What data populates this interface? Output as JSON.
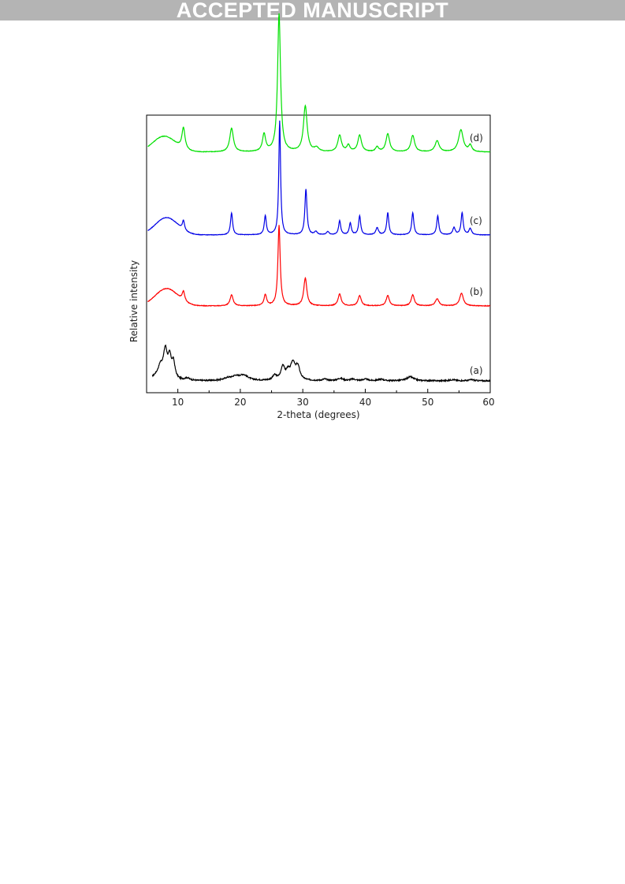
{
  "banner": {
    "text": "ACCEPTED MANUSCRIPT"
  },
  "chart_data": {
    "type": "line",
    "xlabel": "2-theta (degrees)",
    "ylabel": "Relative intensity",
    "xlim": [
      5,
      60
    ],
    "xticks": [
      10,
      20,
      30,
      40,
      50,
      60
    ],
    "y_ticks_shown": false,
    "grid": false,
    "colors": {
      "a": "#000000",
      "b": "#ff0000",
      "c": "#0000e6",
      "d": "#00e000"
    },
    "series": [
      {
        "name": "(a)",
        "offset": 0.0,
        "baseline": 0.05,
        "broad": [
          [
            7.5,
            0.1,
            1.2
          ]
        ],
        "peaks": [
          [
            7.2,
            0.09,
            0.35
          ],
          [
            8.0,
            0.3,
            0.35
          ],
          [
            8.7,
            0.22,
            0.3
          ],
          [
            9.3,
            0.19,
            0.3
          ],
          [
            11.5,
            0.03,
            0.5
          ],
          [
            18.0,
            0.03,
            0.8
          ],
          [
            19.2,
            0.04,
            0.6
          ],
          [
            20.5,
            0.07,
            0.9
          ],
          [
            25.5,
            0.06,
            0.4
          ],
          [
            26.8,
            0.17,
            0.35
          ],
          [
            27.6,
            0.09,
            0.35
          ],
          [
            28.4,
            0.21,
            0.45
          ],
          [
            29.2,
            0.16,
            0.4
          ],
          [
            33.5,
            0.02,
            0.4
          ],
          [
            36.0,
            0.03,
            0.5
          ],
          [
            38.0,
            0.02,
            0.5
          ],
          [
            40.0,
            0.02,
            0.5
          ],
          [
            42.5,
            0.02,
            0.5
          ],
          [
            47.2,
            0.05,
            0.7
          ],
          [
            54.0,
            0.015,
            0.5
          ],
          [
            57.0,
            0.015,
            0.5
          ]
        ],
        "noise": 0.008
      },
      {
        "name": "(b)",
        "offset": 1.0,
        "baseline": 0.0,
        "broad": [
          [
            8.2,
            0.22,
            1.8
          ]
        ],
        "peaks": [
          [
            10.9,
            0.12,
            0.25
          ],
          [
            18.6,
            0.14,
            0.3
          ],
          [
            24.0,
            0.14,
            0.25
          ],
          [
            26.2,
            1.02,
            0.22
          ],
          [
            30.4,
            0.35,
            0.3
          ],
          [
            35.9,
            0.15,
            0.3
          ],
          [
            39.1,
            0.13,
            0.3
          ],
          [
            43.6,
            0.13,
            0.3
          ],
          [
            47.6,
            0.14,
            0.3
          ],
          [
            51.5,
            0.09,
            0.35
          ],
          [
            55.4,
            0.16,
            0.35
          ]
        ],
        "noise": 0.004
      },
      {
        "name": "(c)",
        "offset": 1.9,
        "baseline": 0.0,
        "broad": [
          [
            8.2,
            0.22,
            1.8
          ]
        ],
        "peaks": [
          [
            10.9,
            0.12,
            0.2
          ],
          [
            18.6,
            0.28,
            0.2
          ],
          [
            24.0,
            0.24,
            0.2
          ],
          [
            26.3,
            1.45,
            0.17
          ],
          [
            30.5,
            0.58,
            0.2
          ],
          [
            32.1,
            0.04,
            0.25
          ],
          [
            34.0,
            0.04,
            0.25
          ],
          [
            35.9,
            0.18,
            0.2
          ],
          [
            37.6,
            0.15,
            0.2
          ],
          [
            39.1,
            0.24,
            0.2
          ],
          [
            41.9,
            0.09,
            0.25
          ],
          [
            43.6,
            0.28,
            0.2
          ],
          [
            47.6,
            0.28,
            0.2
          ],
          [
            51.6,
            0.24,
            0.2
          ],
          [
            54.2,
            0.09,
            0.25
          ],
          [
            55.5,
            0.28,
            0.2
          ],
          [
            56.8,
            0.08,
            0.25
          ]
        ],
        "noise": 0.003
      },
      {
        "name": "(d)",
        "offset": 2.95,
        "baseline": 0.0,
        "broad": [
          [
            7.8,
            0.2,
            1.8
          ]
        ],
        "peaks": [
          [
            10.9,
            0.27,
            0.3
          ],
          [
            18.6,
            0.3,
            0.35
          ],
          [
            23.8,
            0.22,
            0.3
          ],
          [
            26.2,
            1.75,
            0.28
          ],
          [
            30.4,
            0.58,
            0.35
          ],
          [
            32.2,
            0.05,
            0.4
          ],
          [
            35.9,
            0.21,
            0.35
          ],
          [
            37.3,
            0.08,
            0.3
          ],
          [
            39.1,
            0.21,
            0.35
          ],
          [
            41.9,
            0.06,
            0.3
          ],
          [
            43.6,
            0.23,
            0.35
          ],
          [
            47.6,
            0.21,
            0.35
          ],
          [
            51.5,
            0.14,
            0.4
          ],
          [
            55.3,
            0.28,
            0.45
          ],
          [
            56.8,
            0.08,
            0.3
          ]
        ],
        "noise": 0.003
      }
    ]
  }
}
